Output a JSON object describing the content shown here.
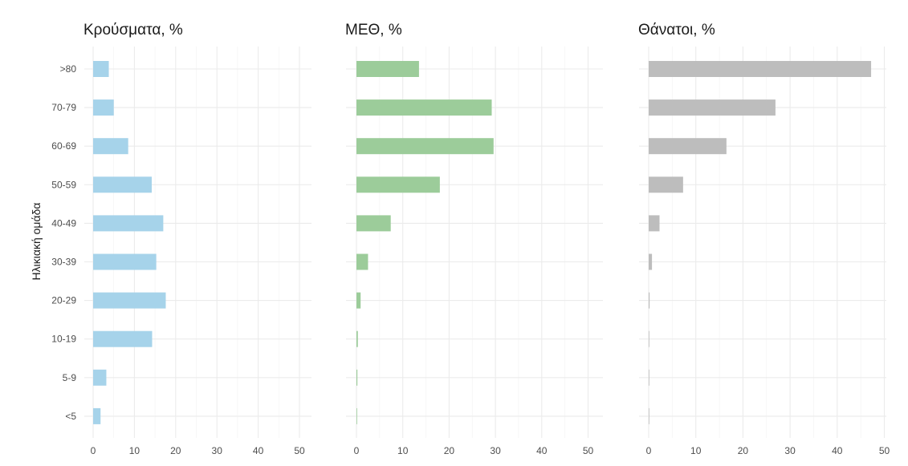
{
  "chart_data": {
    "type": "bar",
    "orientation": "horizontal",
    "ylabel": "Ηλικιακή ομάδα",
    "categories": [
      ">80",
      "70-79",
      "60-69",
      "50-59",
      "40-49",
      "30-39",
      "20-29",
      "10-19",
      "5-9",
      "<5"
    ],
    "xlim": [
      0,
      52
    ],
    "xticks": [
      "0",
      "10",
      "20",
      "30",
      "40",
      "50"
    ],
    "grid": true,
    "legend": "none",
    "panels": [
      {
        "title": "Κρούσματα, %",
        "color": "#a6d3ea",
        "values": [
          3.8,
          5.0,
          8.5,
          14.2,
          17.0,
          15.3,
          17.6,
          14.3,
          3.2,
          1.8
        ]
      },
      {
        "title": "ΜΕΘ, %",
        "color": "#9ccc9a",
        "values": [
          13.5,
          29.2,
          29.6,
          18.0,
          7.4,
          2.5,
          0.9,
          0.3,
          0.2,
          0.1
        ]
      },
      {
        "title": "Θάνατοι, %",
        "color": "#bdbdbd",
        "values": [
          47.2,
          26.9,
          16.5,
          7.3,
          2.3,
          0.7,
          0.2,
          0.1,
          0.05,
          0.05
        ]
      }
    ]
  }
}
